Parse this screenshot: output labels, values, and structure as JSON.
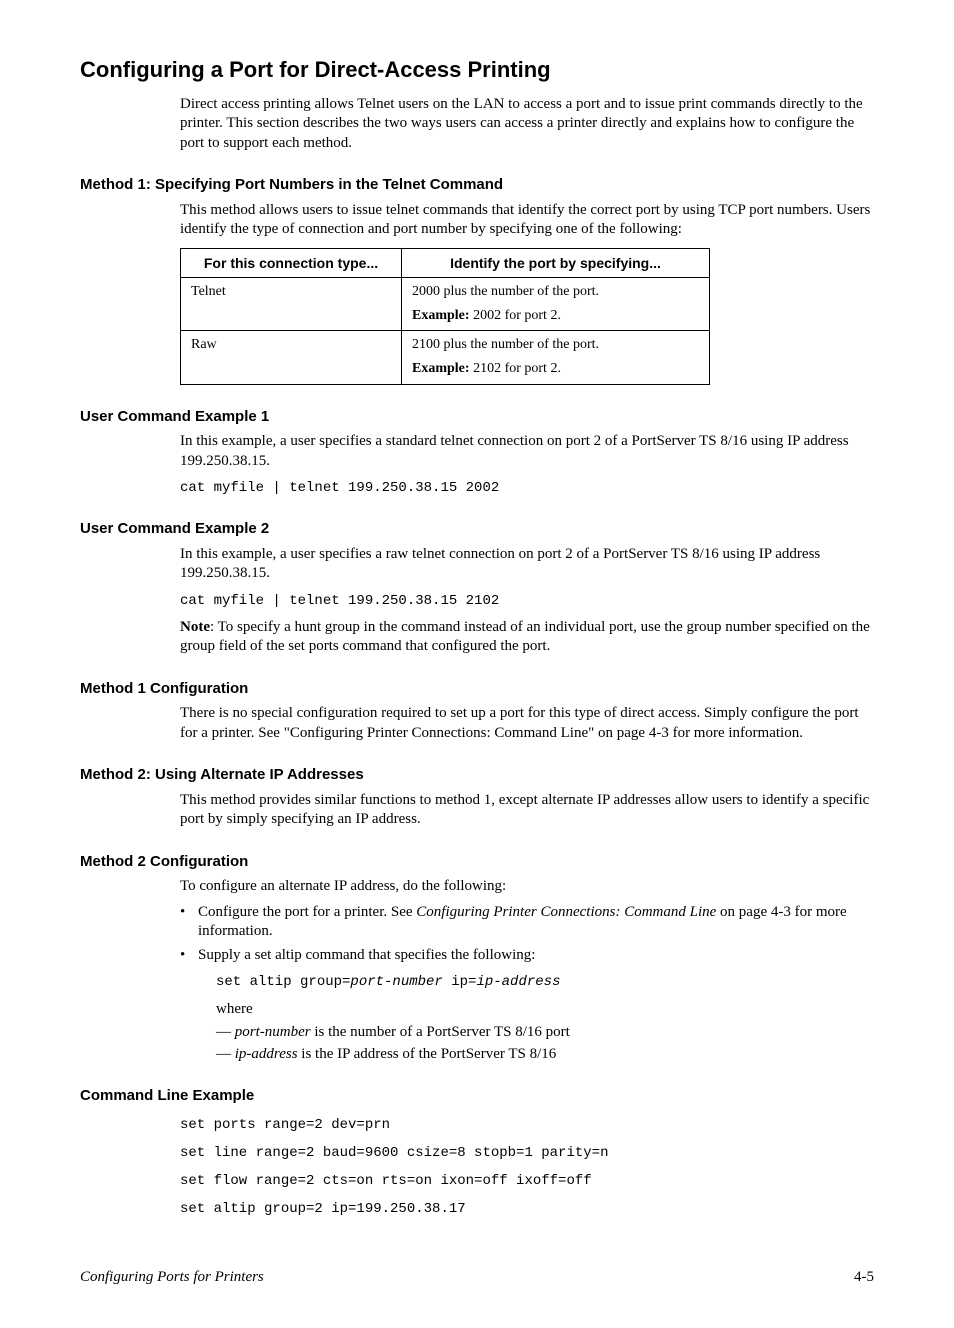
{
  "page": {
    "title": "Configuring a Port for Direct-Access Printing",
    "intro": "Direct access printing allows Telnet users on the LAN to access a port and to issue print commands directly to the printer. This section describes the two ways users can access a printer directly and explains how to configure the port to support each method."
  },
  "method1": {
    "heading": "Method 1: Specifying Port Numbers in the Telnet Command",
    "text": "This method allows users to issue telnet commands that identify the correct port by using TCP port numbers. Users identify the type of connection and port number by specifying one of the following:",
    "table": {
      "col1": "For this connection type...",
      "col2": "Identify the port by specifying...",
      "rows": [
        {
          "type": "Telnet",
          "desc": "2000 plus the number of the port.",
          "example_label": "Example:",
          "example_text": " 2002 for port 2."
        },
        {
          "type": "Raw",
          "desc": "2100 plus the number of the port.",
          "example_label": "Example:",
          "example_text": " 2102 for port 2."
        }
      ]
    }
  },
  "ex1": {
    "heading": "User Command Example 1",
    "text": "In this example, a user specifies a standard telnet connection on port 2 of a PortServer TS 8/16 using IP address 199.250.38.15.",
    "code": "cat myfile | telnet 199.250.38.15 2002"
  },
  "ex2": {
    "heading": "User Command Example 2",
    "text": "In this example, a user specifies a raw telnet connection on port 2 of a PortServer TS 8/16 using IP address 199.250.38.15.",
    "code": "cat myfile | telnet 199.250.38.15 2102",
    "note_label": "Note",
    "note_text": ": To specify a hunt group in the command instead of an individual port, use the group number specified on the group field of the set ports command that configured the port."
  },
  "m1cfg": {
    "heading": "Method 1 Configuration",
    "text": "There is no special configuration required to set up a port for this type of direct access. Simply configure the port for a printer. See \"Configuring Printer Connections: Command Line\" on page 4-3 for more information."
  },
  "method2": {
    "heading": "Method 2: Using Alternate IP Addresses",
    "text": "This method provides similar functions to method 1, except alternate IP addresses allow users to identify a specific port by simply specifying an IP address."
  },
  "m2cfg": {
    "heading": "Method 2 Configuration",
    "intro": "To configure an alternate IP address, do the following:",
    "bullet1_a": "Configure the port for a printer. See ",
    "bullet1_i": "Configuring Printer Connections: Command Line",
    "bullet1_b": " on page 4-3 for more information.",
    "bullet2": "Supply a set altip command that specifies the following:",
    "code_pre": "set altip group=",
    "code_arg1": "port-number",
    "code_mid": " ip=",
    "code_arg2": "ip-address",
    "where": "where",
    "d1_pre": "— ",
    "d1_i": "port-number",
    "d1_post": " is the number of a PortServer TS 8/16 port",
    "d2_pre": "— ",
    "d2_i": "ip-address",
    "d2_post": " is the IP address of the PortServer TS 8/16"
  },
  "cle": {
    "heading": "Command Line Example",
    "l1": "set ports range=2 dev=prn",
    "l2": "set line range=2 baud=9600 csize=8 stopb=1 parity=n",
    "l3": "set flow range=2 cts=on rts=on ixon=off ixoff=off",
    "l4": "set altip group=2 ip=199.250.38.17"
  },
  "footer": {
    "left": "Configuring Ports for Printers",
    "right": "4-5"
  }
}
